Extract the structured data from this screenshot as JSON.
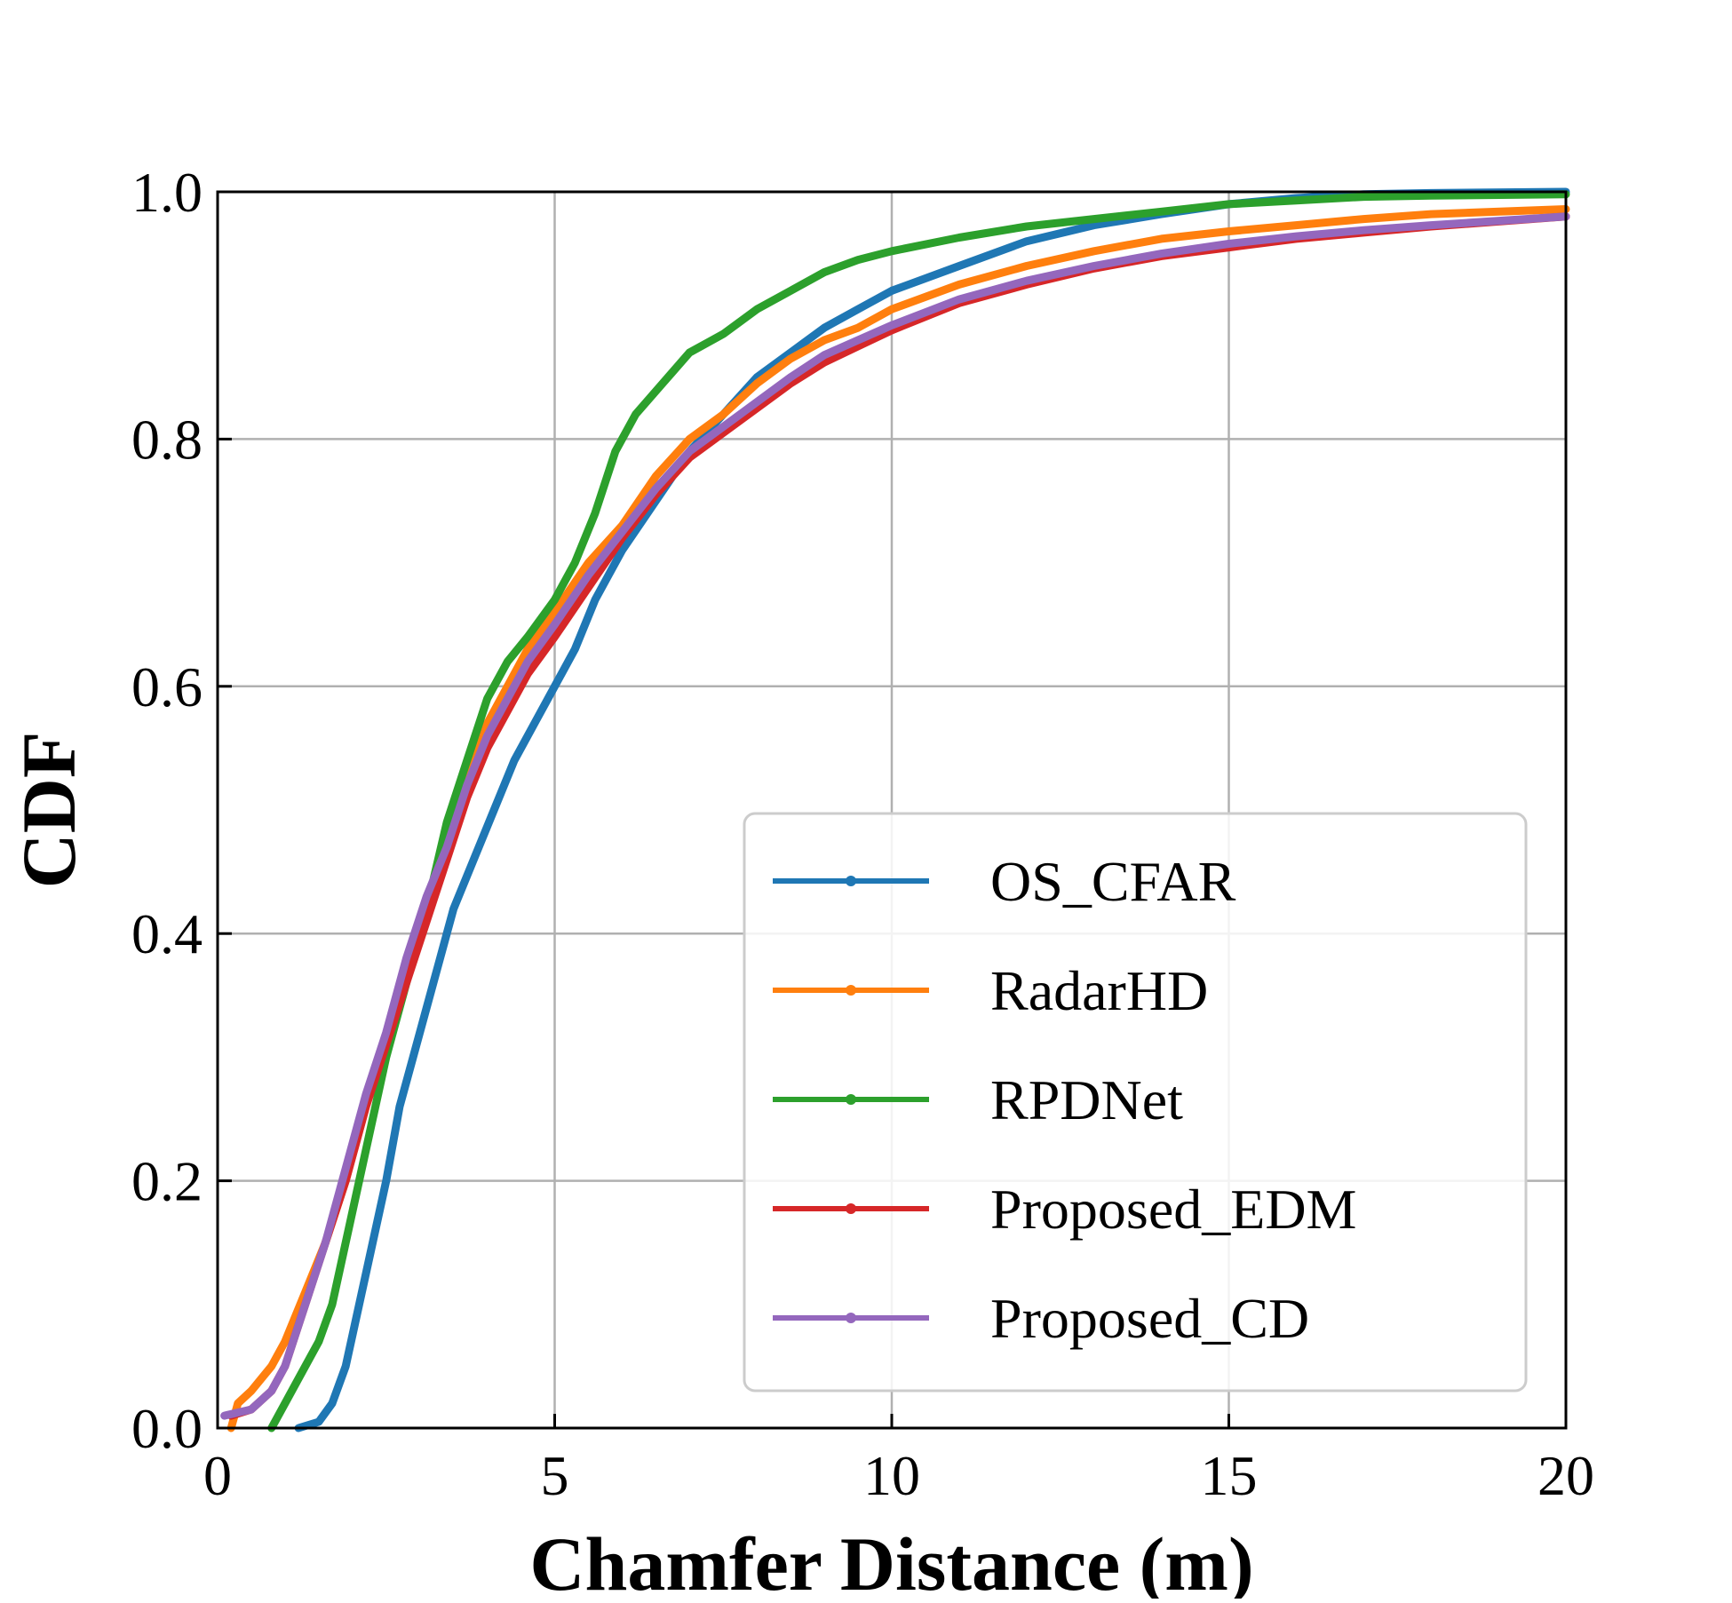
{
  "chart_data": {
    "type": "line",
    "title": "",
    "xlabel": "Chamfer Distance (m)",
    "ylabel": "CDF",
    "xlim": [
      0,
      20
    ],
    "ylim": [
      0.0,
      1.0
    ],
    "x_ticks": [
      "0",
      "5",
      "10",
      "15",
      "20"
    ],
    "y_ticks": [
      "0.0",
      "0.2",
      "0.4",
      "0.6",
      "0.8",
      "1.0"
    ],
    "grid": true,
    "legend_position": "lower-right",
    "series": [
      {
        "name": "OS_CFAR",
        "color": "#1f77b4",
        "points": [
          [
            1.2,
            0.0
          ],
          [
            1.5,
            0.005
          ],
          [
            1.7,
            0.02
          ],
          [
            1.9,
            0.05
          ],
          [
            2.1,
            0.1
          ],
          [
            2.3,
            0.15
          ],
          [
            2.5,
            0.2
          ],
          [
            2.7,
            0.26
          ],
          [
            2.9,
            0.3
          ],
          [
            3.1,
            0.34
          ],
          [
            3.3,
            0.38
          ],
          [
            3.5,
            0.42
          ],
          [
            3.8,
            0.46
          ],
          [
            4.1,
            0.5
          ],
          [
            4.4,
            0.54
          ],
          [
            4.7,
            0.57
          ],
          [
            5.0,
            0.6
          ],
          [
            5.3,
            0.63
          ],
          [
            5.6,
            0.67
          ],
          [
            5.8,
            0.69
          ],
          [
            6.0,
            0.71
          ],
          [
            6.5,
            0.75
          ],
          [
            7.0,
            0.79
          ],
          [
            7.5,
            0.82
          ],
          [
            8.0,
            0.85
          ],
          [
            8.5,
            0.87
          ],
          [
            9.0,
            0.89
          ],
          [
            9.5,
            0.905
          ],
          [
            10.0,
            0.92
          ],
          [
            11.0,
            0.94
          ],
          [
            12.0,
            0.96
          ],
          [
            13.0,
            0.973
          ],
          [
            14.0,
            0.982
          ],
          [
            15.0,
            0.99
          ],
          [
            16.0,
            0.995
          ],
          [
            17.0,
            0.998
          ],
          [
            18.0,
            0.999
          ],
          [
            20.0,
            1.0
          ]
        ]
      },
      {
        "name": "RadarHD",
        "color": "#ff7f0e",
        "points": [
          [
            0.2,
            0.0
          ],
          [
            0.3,
            0.02
          ],
          [
            0.5,
            0.03
          ],
          [
            0.8,
            0.05
          ],
          [
            1.0,
            0.07
          ],
          [
            1.3,
            0.11
          ],
          [
            1.6,
            0.15
          ],
          [
            1.9,
            0.2
          ],
          [
            2.2,
            0.26
          ],
          [
            2.5,
            0.31
          ],
          [
            2.8,
            0.37
          ],
          [
            3.1,
            0.42
          ],
          [
            3.4,
            0.47
          ],
          [
            3.7,
            0.52
          ],
          [
            4.0,
            0.57
          ],
          [
            4.3,
            0.6
          ],
          [
            4.6,
            0.63
          ],
          [
            5.0,
            0.66
          ],
          [
            5.5,
            0.7
          ],
          [
            6.0,
            0.73
          ],
          [
            6.5,
            0.77
          ],
          [
            7.0,
            0.8
          ],
          [
            7.5,
            0.82
          ],
          [
            8.0,
            0.845
          ],
          [
            8.5,
            0.865
          ],
          [
            9.0,
            0.88
          ],
          [
            9.5,
            0.89
          ],
          [
            10.0,
            0.905
          ],
          [
            11.0,
            0.925
          ],
          [
            12.0,
            0.94
          ],
          [
            13.0,
            0.952
          ],
          [
            14.0,
            0.962
          ],
          [
            15.0,
            0.968
          ],
          [
            16.0,
            0.973
          ],
          [
            17.0,
            0.978
          ],
          [
            18.0,
            0.982
          ],
          [
            20.0,
            0.986
          ]
        ]
      },
      {
        "name": "RPDNet",
        "color": "#2ca02c",
        "points": [
          [
            0.8,
            0.0
          ],
          [
            1.0,
            0.02
          ],
          [
            1.2,
            0.04
          ],
          [
            1.5,
            0.07
          ],
          [
            1.7,
            0.1
          ],
          [
            1.9,
            0.15
          ],
          [
            2.1,
            0.2
          ],
          [
            2.3,
            0.25
          ],
          [
            2.5,
            0.3
          ],
          [
            2.8,
            0.36
          ],
          [
            3.1,
            0.42
          ],
          [
            3.4,
            0.49
          ],
          [
            3.7,
            0.54
          ],
          [
            4.0,
            0.59
          ],
          [
            4.3,
            0.62
          ],
          [
            4.6,
            0.64
          ],
          [
            5.0,
            0.67
          ],
          [
            5.3,
            0.7
          ],
          [
            5.6,
            0.74
          ],
          [
            5.9,
            0.79
          ],
          [
            6.2,
            0.82
          ],
          [
            6.6,
            0.845
          ],
          [
            7.0,
            0.87
          ],
          [
            7.5,
            0.885
          ],
          [
            8.0,
            0.905
          ],
          [
            8.5,
            0.92
          ],
          [
            9.0,
            0.935
          ],
          [
            9.5,
            0.945
          ],
          [
            10.0,
            0.952
          ],
          [
            11.0,
            0.963
          ],
          [
            12.0,
            0.972
          ],
          [
            13.0,
            0.978
          ],
          [
            14.0,
            0.984
          ],
          [
            15.0,
            0.99
          ],
          [
            16.0,
            0.993
          ],
          [
            17.0,
            0.996
          ],
          [
            18.0,
            0.997
          ],
          [
            20.0,
            0.998
          ]
        ]
      },
      {
        "name": "Proposed_EDM",
        "color": "#d62728",
        "points": [
          [
            0.2,
            0.01
          ],
          [
            0.5,
            0.015
          ],
          [
            0.8,
            0.03
          ],
          [
            1.0,
            0.05
          ],
          [
            1.3,
            0.1
          ],
          [
            1.6,
            0.15
          ],
          [
            1.9,
            0.2
          ],
          [
            2.2,
            0.26
          ],
          [
            2.5,
            0.31
          ],
          [
            2.8,
            0.36
          ],
          [
            3.1,
            0.41
          ],
          [
            3.4,
            0.46
          ],
          [
            3.7,
            0.51
          ],
          [
            4.0,
            0.55
          ],
          [
            4.3,
            0.58
          ],
          [
            4.6,
            0.61
          ],
          [
            5.0,
            0.64
          ],
          [
            5.5,
            0.68
          ],
          [
            6.0,
            0.72
          ],
          [
            6.5,
            0.755
          ],
          [
            7.0,
            0.785
          ],
          [
            7.5,
            0.805
          ],
          [
            8.0,
            0.825
          ],
          [
            8.5,
            0.845
          ],
          [
            9.0,
            0.862
          ],
          [
            9.5,
            0.875
          ],
          [
            10.0,
            0.888
          ],
          [
            11.0,
            0.91
          ],
          [
            12.0,
            0.925
          ],
          [
            13.0,
            0.938
          ],
          [
            14.0,
            0.948
          ],
          [
            15.0,
            0.955
          ],
          [
            16.0,
            0.962
          ],
          [
            17.0,
            0.967
          ],
          [
            18.0,
            0.972
          ],
          [
            20.0,
            0.98
          ]
        ]
      },
      {
        "name": "Proposed_CD",
        "color": "#9467bd",
        "points": [
          [
            0.1,
            0.01
          ],
          [
            0.5,
            0.015
          ],
          [
            0.8,
            0.03
          ],
          [
            1.0,
            0.05
          ],
          [
            1.3,
            0.1
          ],
          [
            1.6,
            0.15
          ],
          [
            1.9,
            0.21
          ],
          [
            2.2,
            0.27
          ],
          [
            2.5,
            0.32
          ],
          [
            2.8,
            0.38
          ],
          [
            3.1,
            0.43
          ],
          [
            3.4,
            0.47
          ],
          [
            3.7,
            0.52
          ],
          [
            4.0,
            0.56
          ],
          [
            4.3,
            0.59
          ],
          [
            4.6,
            0.62
          ],
          [
            5.0,
            0.65
          ],
          [
            5.5,
            0.69
          ],
          [
            6.0,
            0.725
          ],
          [
            6.5,
            0.76
          ],
          [
            7.0,
            0.79
          ],
          [
            7.5,
            0.81
          ],
          [
            8.0,
            0.83
          ],
          [
            8.5,
            0.85
          ],
          [
            9.0,
            0.868
          ],
          [
            9.5,
            0.88
          ],
          [
            10.0,
            0.892
          ],
          [
            11.0,
            0.913
          ],
          [
            12.0,
            0.928
          ],
          [
            13.0,
            0.94
          ],
          [
            14.0,
            0.95
          ],
          [
            15.0,
            0.958
          ],
          [
            16.0,
            0.964
          ],
          [
            17.0,
            0.969
          ],
          [
            18.0,
            0.973
          ],
          [
            20.0,
            0.98
          ]
        ]
      }
    ]
  }
}
